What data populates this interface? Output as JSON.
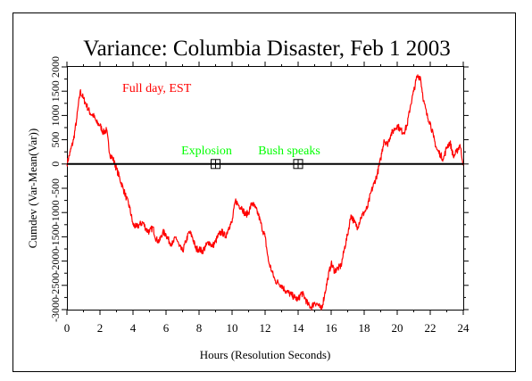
{
  "chart_data": {
    "type": "line",
    "title": "Variance: Columbia Disaster, Feb 1 2003",
    "subtitle": "Full day, EST",
    "xlabel": "Hours (Resolution Seconds)",
    "ylabel": "Cumdev (Var-Mean(Var))",
    "xlim": [
      0,
      24
    ],
    "ylim": [
      -3000,
      2000
    ],
    "x_ticks": [
      "0",
      "2",
      "4",
      "6",
      "8",
      "10",
      "12",
      "14",
      "16",
      "18",
      "20",
      "22",
      "24"
    ],
    "y_ticks": [
      "-3000",
      "-2500",
      "-2000",
      "-1500",
      "-1000",
      "-500",
      "0",
      "500",
      "1000",
      "1500",
      "2000"
    ],
    "grid": false,
    "colors": {
      "series": "#ff0000",
      "annotation": "#00ff00",
      "axes": "#000000"
    },
    "series": [
      {
        "x": [
          0,
          0.2,
          0.4,
          0.6,
          0.8,
          1.0,
          1.2,
          1.4,
          1.6,
          1.8,
          2.0,
          2.2,
          2.4,
          2.6,
          2.8,
          3.0,
          3.2,
          3.4,
          3.6,
          3.8,
          4.0,
          4.2,
          4.4,
          4.6,
          4.8,
          5.0,
          5.2,
          5.4,
          5.6,
          5.8,
          6.0,
          6.2,
          6.4,
          6.6,
          6.8,
          7.0,
          7.2,
          7.4,
          7.6,
          7.8,
          8.0,
          8.2,
          8.4,
          8.6,
          8.8,
          9.0,
          9.2,
          9.4,
          9.6,
          9.8,
          10.0,
          10.2,
          10.4,
          10.6,
          10.8,
          11.0,
          11.2,
          11.4,
          11.6,
          11.8,
          12.0,
          12.2,
          12.4,
          12.6,
          12.8,
          13.0,
          13.2,
          13.4,
          13.6,
          13.8,
          14.0,
          14.2,
          14.4,
          14.6,
          14.8,
          15.0,
          15.2,
          15.4,
          15.6,
          15.8,
          16.0,
          16.2,
          16.4,
          16.6,
          16.8,
          17.0,
          17.2,
          17.4,
          17.6,
          17.8,
          18.0,
          18.2,
          18.4,
          18.6,
          18.8,
          19.0,
          19.2,
          19.4,
          19.6,
          19.8,
          20.0,
          20.2,
          20.4,
          20.6,
          20.8,
          21.0,
          21.2,
          21.4,
          21.6,
          21.8,
          22.0,
          22.2,
          22.4,
          22.6,
          22.8,
          23.0,
          23.2,
          23.4,
          23.6,
          23.8,
          24.0
        ],
        "y": [
          0,
          250,
          500,
          950,
          1500,
          1350,
          1200,
          1050,
          1000,
          850,
          800,
          650,
          700,
          200,
          100,
          -100,
          -300,
          -500,
          -700,
          -900,
          -1250,
          -1300,
          -1250,
          -1200,
          -1350,
          -1400,
          -1300,
          -1550,
          -1600,
          -1400,
          -1450,
          -1600,
          -1650,
          -1500,
          -1700,
          -1800,
          -1600,
          -1400,
          -1500,
          -1750,
          -1750,
          -1800,
          -1700,
          -1600,
          -1700,
          -1600,
          -1450,
          -1400,
          -1500,
          -1300,
          -1200,
          -750,
          -850,
          -900,
          -1050,
          -1000,
          -800,
          -900,
          -1050,
          -1300,
          -1500,
          -2000,
          -2200,
          -2400,
          -2450,
          -2500,
          -2600,
          -2650,
          -2700,
          -2750,
          -2800,
          -2650,
          -2750,
          -2900,
          -2950,
          -2850,
          -2900,
          -3000,
          -2700,
          -2350,
          -2050,
          -2200,
          -2150,
          -2100,
          -1750,
          -1450,
          -1050,
          -1200,
          -1300,
          -1100,
          -1000,
          -900,
          -600,
          -400,
          -200,
          100,
          500,
          400,
          600,
          700,
          800,
          700,
          650,
          800,
          1200,
          1500,
          1800,
          1800,
          1300,
          1000,
          850,
          550,
          300,
          200,
          100,
          350,
          450,
          150,
          250,
          400,
          0
        ]
      }
    ],
    "annotations": [
      {
        "label": "Explosion",
        "x": 9.0,
        "y": 0
      },
      {
        "label": "Bush speaks",
        "x": 14.0,
        "y": 0
      }
    ]
  }
}
